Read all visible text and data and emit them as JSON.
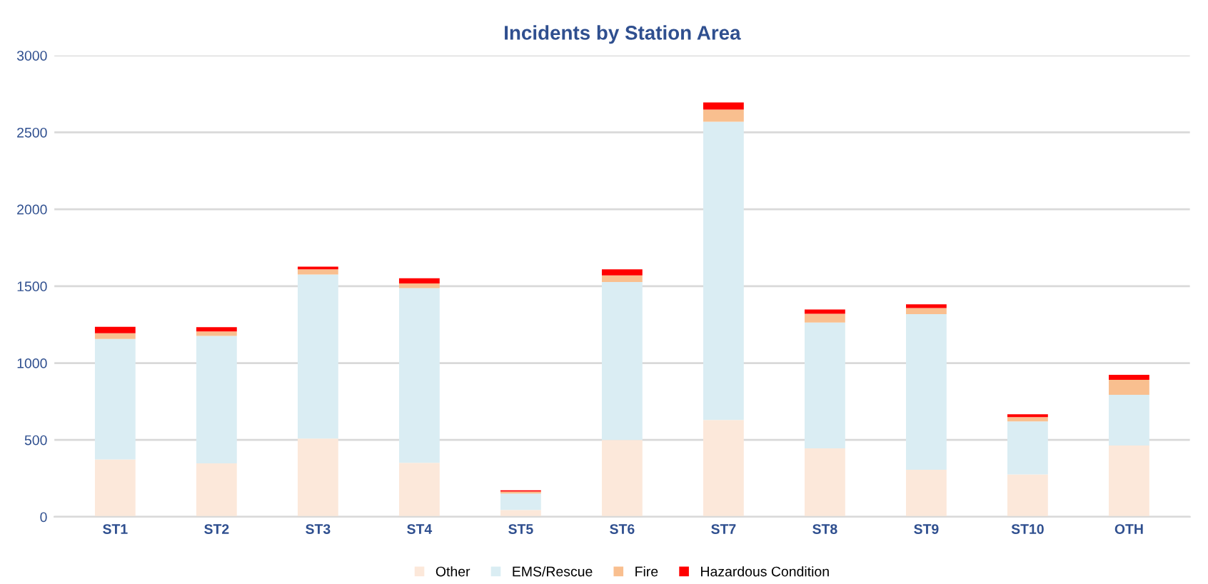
{
  "chart_data": {
    "type": "bar",
    "title": "Incidents by Station Area",
    "stacked": true,
    "categories": [
      "ST1",
      "ST2",
      "ST3",
      "ST4",
      "ST5",
      "ST6",
      "ST7",
      "ST8",
      "ST9",
      "ST10",
      "OTH"
    ],
    "series": [
      {
        "name": "Other",
        "color": "#fce8da",
        "values": [
          373,
          348,
          509,
          351,
          45,
          500,
          630,
          445,
          306,
          276,
          464
        ]
      },
      {
        "name": "EMS/Rescue",
        "color": "#daedf3",
        "values": [
          784,
          828,
          1067,
          1137,
          107,
          1027,
          1939,
          819,
          1012,
          345,
          330
        ]
      },
      {
        "name": "Fire",
        "color": "#f9bf8f",
        "values": [
          37,
          30,
          33,
          30,
          12,
          43,
          79,
          57,
          39,
          27,
          97
        ]
      },
      {
        "name": "Hazardous Condition",
        "color": "#ff0000",
        "values": [
          42,
          27,
          18,
          33,
          9,
          39,
          46,
          27,
          25,
          19,
          33
        ]
      }
    ],
    "ylim": [
      0,
      3000
    ],
    "yticks": [
      0,
      500,
      1000,
      1500,
      2000,
      2500,
      3000
    ],
    "grid": "y",
    "legend": "bottom"
  }
}
